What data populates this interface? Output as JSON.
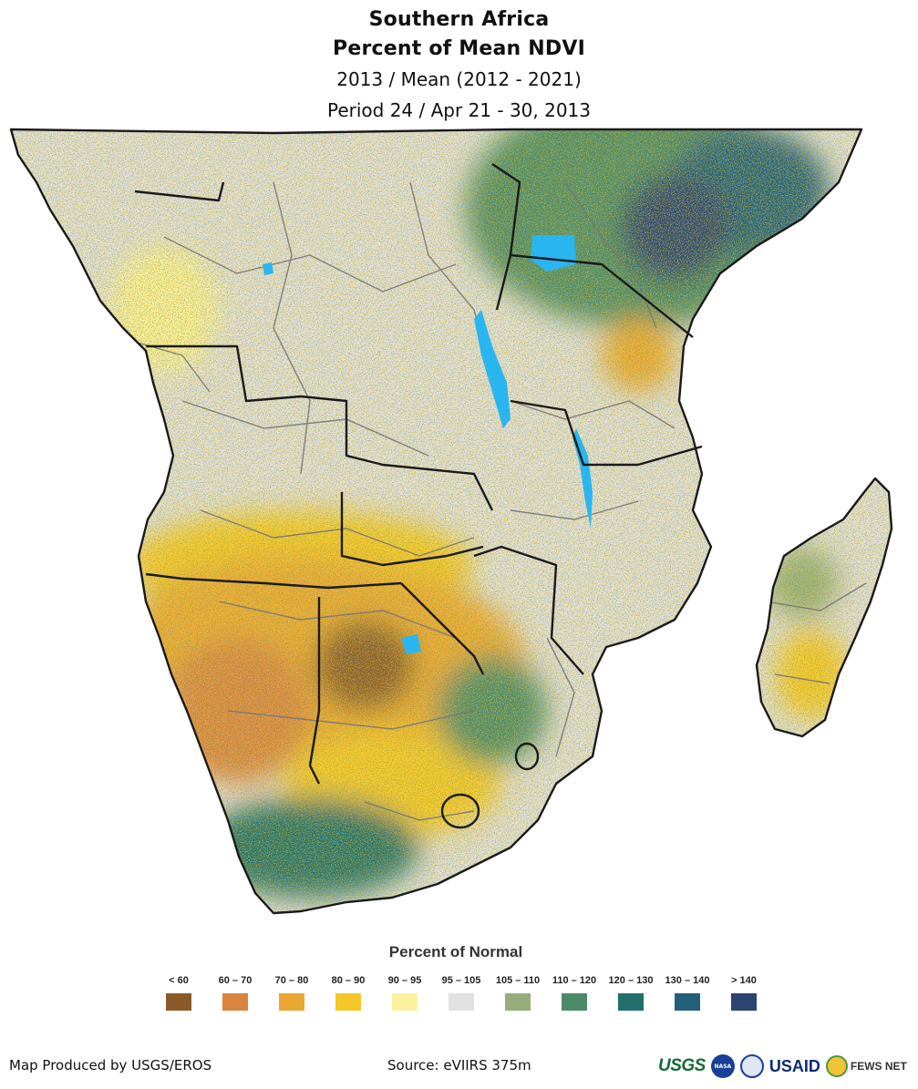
{
  "title": {
    "line1": "Southern Africa",
    "line2": "Percent of Mean NDVI",
    "line3": "2013 / Mean (2012 - 2021)",
    "line4": "Period 24 / Apr 21 - 30, 2013"
  },
  "legend": {
    "title": "Percent of Normal",
    "classes": [
      {
        "label": "< 60",
        "color": "#8b5a2b"
      },
      {
        "label": "60 – 70",
        "color": "#d9843f"
      },
      {
        "label": "70 – 80",
        "color": "#eaa733"
      },
      {
        "label": "80 – 90",
        "color": "#f5c828"
      },
      {
        "label": "90 – 95",
        "color": "#fbf2a0"
      },
      {
        "label": "95 – 105",
        "color": "#e1e1e1"
      },
      {
        "label": "105 – 110",
        "color": "#97ad7b"
      },
      {
        "label": "110 – 120",
        "color": "#4c8a68"
      },
      {
        "label": "120 – 130",
        "color": "#236f6b"
      },
      {
        "label": "130 – 140",
        "color": "#215f7b"
      },
      {
        "label": "> 140",
        "color": "#2b4470"
      }
    ]
  },
  "map": {
    "land_color": "#e1e1e1",
    "water_color": "#29b6f0",
    "border_color": "#1a1a1a",
    "admin_color": "#777777"
  },
  "footer": {
    "producer": "Map Produced by USGS/EROS",
    "source": "Source: eVIIRS 375m",
    "logos": {
      "usgs": "USGS",
      "nasa": "NASA",
      "usaid": "USAID",
      "fewsnet": "FEWS NET"
    }
  }
}
